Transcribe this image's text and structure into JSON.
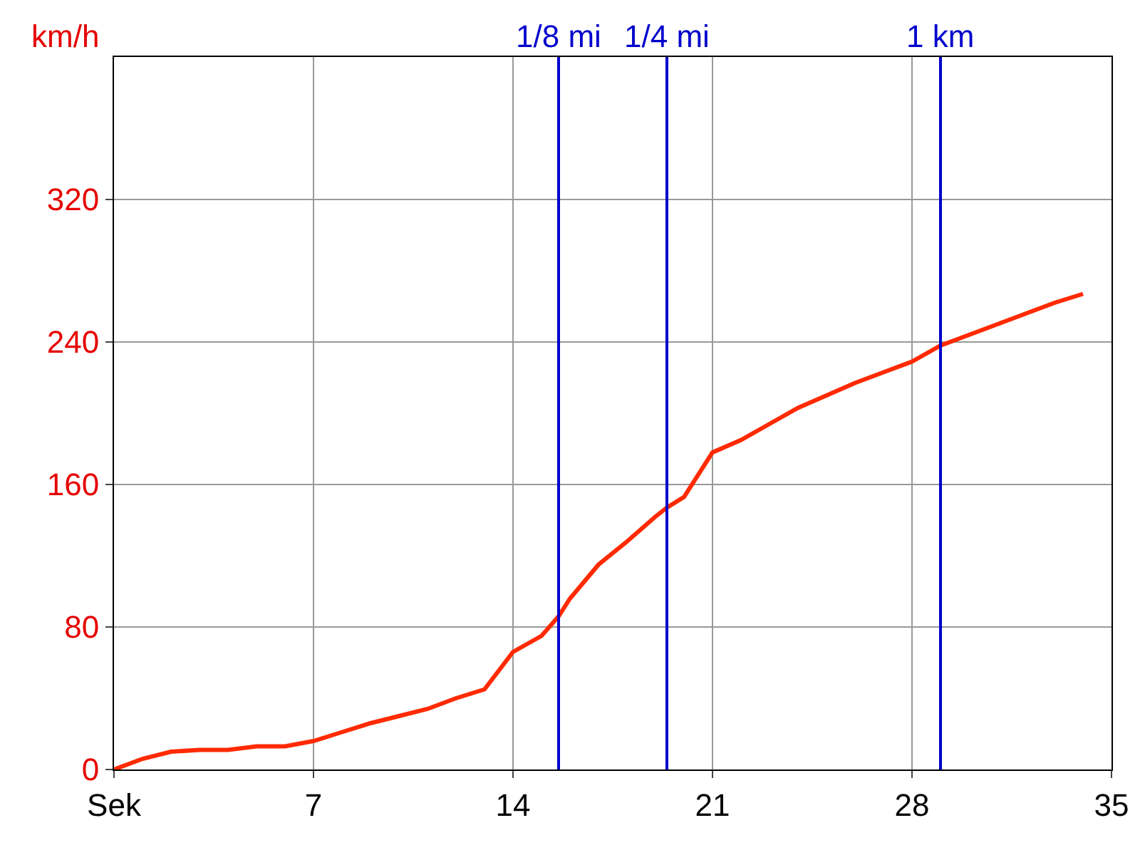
{
  "chart_data": {
    "type": "line",
    "ylabel": "km/h",
    "x": [
      0,
      1,
      2,
      3,
      4,
      5,
      6,
      7,
      8,
      9,
      10,
      11,
      12,
      13,
      14,
      15,
      15.6,
      16,
      17,
      18,
      19,
      19.4,
      20,
      21,
      22,
      23,
      24,
      25,
      26,
      27,
      28,
      29,
      30,
      31,
      32,
      33,
      34
    ],
    "series": [
      {
        "color": "#ff2a00",
        "values": [
          0,
          6,
          10,
          11,
          11,
          13,
          13,
          16,
          21,
          26,
          30,
          34,
          40,
          45,
          66,
          75,
          86,
          96,
          115,
          128,
          142,
          147,
          153,
          178,
          185,
          194,
          203,
          210,
          217,
          223,
          229,
          238,
          244,
          250,
          256,
          262,
          267
        ]
      }
    ],
    "xlim": [
      0,
      35
    ],
    "xticks": [
      {
        "value": 0,
        "label": "Sek"
      },
      7,
      14,
      21,
      28,
      35
    ],
    "ylim": [
      0,
      400
    ],
    "yticks": [
      0,
      80,
      160,
      240,
      320
    ],
    "ref_lines": [
      {
        "axis": "x",
        "value": 15.6,
        "label": "1/8 mi",
        "color": "#0000cc"
      },
      {
        "axis": "x",
        "value": 19.4,
        "label": "1/4 mi",
        "color": "#0000cc"
      },
      {
        "axis": "x",
        "value": 29,
        "label": "1 km",
        "color": "#0000cc"
      }
    ],
    "grid": true,
    "marker": "none",
    "line_style": "solid"
  }
}
